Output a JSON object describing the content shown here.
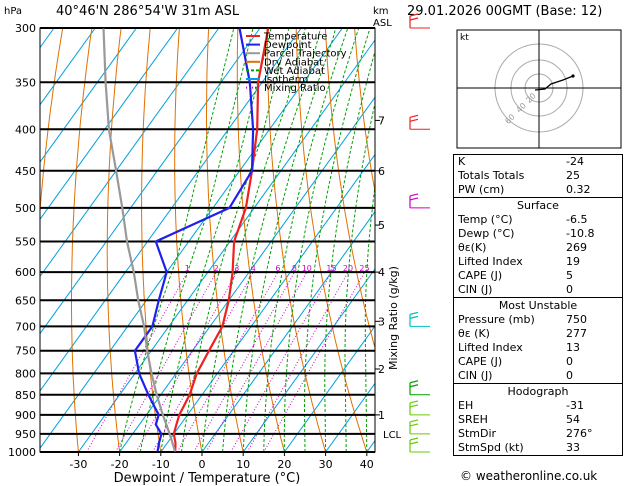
{
  "header": {
    "location": "40°46'N  286°54'W  31m  ASL",
    "datetime": "29.01.2026  00GMT  (Base: 12)",
    "left_unit": "hPa",
    "right_unit_km": "km",
    "right_unit_asl": "ASL"
  },
  "chart_data": {
    "type": "skew-t log-p",
    "title": "40°46'N 286°54'W 31m ASL",
    "xlabel": "Dewpoint / Temperature (°C)",
    "ylabel": "hPa",
    "pressure_levels": [
      300,
      350,
      400,
      450,
      500,
      550,
      600,
      650,
      700,
      750,
      800,
      850,
      900,
      950,
      1000
    ],
    "temp_ticks": [
      -30,
      -20,
      -10,
      0,
      10,
      20,
      30,
      40
    ],
    "xlim": [
      -40,
      40
    ],
    "ylim": [
      1000,
      300
    ],
    "km_labels": [
      {
        "km": "1",
        "p": 900
      },
      {
        "km": "2",
        "p": 790
      },
      {
        "km": "3",
        "p": 690
      },
      {
        "km": "4",
        "p": 600
      },
      {
        "km": "5",
        "p": 525
      },
      {
        "km": "6",
        "p": 450
      },
      {
        "km": "7",
        "p": 390
      }
    ],
    "lcl_label": "LCL",
    "lcl_pressure": 950,
    "mixing_ratio_label": "Mixing Ratio (g/kg)",
    "mixing_ratios": [
      "1",
      "2",
      "3",
      "4",
      "6",
      "8",
      "10",
      "15",
      "20",
      "25"
    ],
    "legend": [
      {
        "name": "Temperature",
        "color": "#ee2020"
      },
      {
        "name": "Dewpoint",
        "color": "#2020ee"
      },
      {
        "name": "Parcel Trajectory",
        "color": "#999999"
      },
      {
        "name": "Dry Adiabat",
        "color": "#e07000"
      },
      {
        "name": "Wet Adiabat",
        "color": "#00a000"
      },
      {
        "name": "Isotherm",
        "color": "#00a0e0"
      },
      {
        "name": "Mixing Ratio",
        "color": "#cc00cc"
      }
    ],
    "series": [
      {
        "name": "Temperature",
        "color": "#ee2020",
        "points": [
          [
            1000,
            -6.5
          ],
          [
            975,
            -8
          ],
          [
            950,
            -10
          ],
          [
            925,
            -11
          ],
          [
            900,
            -12
          ],
          [
            850,
            -13
          ],
          [
            800,
            -15
          ],
          [
            750,
            -16
          ],
          [
            700,
            -17
          ],
          [
            650,
            -20
          ],
          [
            600,
            -24
          ],
          [
            550,
            -29
          ],
          [
            500,
            -32
          ],
          [
            450,
            -37
          ],
          [
            400,
            -43
          ],
          [
            350,
            -51
          ],
          [
            300,
            -58
          ]
        ]
      },
      {
        "name": "Dewpoint",
        "color": "#2020ee",
        "points": [
          [
            1000,
            -10.8
          ],
          [
            975,
            -12
          ],
          [
            950,
            -13
          ],
          [
            925,
            -16
          ],
          [
            900,
            -17
          ],
          [
            850,
            -23
          ],
          [
            800,
            -29
          ],
          [
            750,
            -34
          ],
          [
            700,
            -34
          ],
          [
            650,
            -37
          ],
          [
            600,
            -40
          ],
          [
            550,
            -48
          ],
          [
            500,
            -36
          ],
          [
            450,
            -37
          ],
          [
            400,
            -44
          ],
          [
            350,
            -53
          ],
          [
            300,
            -65
          ]
        ]
      },
      {
        "name": "Parcel Trajectory",
        "color": "#999999",
        "points": [
          [
            1000,
            -6.5
          ],
          [
            950,
            -11
          ],
          [
            900,
            -16
          ],
          [
            850,
            -21
          ],
          [
            800,
            -26
          ],
          [
            750,
            -31
          ],
          [
            700,
            -36
          ],
          [
            650,
            -42
          ],
          [
            600,
            -48
          ],
          [
            550,
            -55
          ],
          [
            500,
            -62
          ],
          [
            450,
            -70
          ],
          [
            400,
            -79
          ],
          [
            350,
            -88
          ],
          [
            300,
            -98
          ]
        ]
      }
    ],
    "wind_barbs": [
      {
        "p": 300,
        "color": "#ee2020"
      },
      {
        "p": 400,
        "color": "#ee2020"
      },
      {
        "p": 500,
        "color": "#cc00cc"
      },
      {
        "p": 700,
        "color": "#00c0c0"
      },
      {
        "p": 850,
        "color": "#00a000"
      },
      {
        "p": 900,
        "color": "#66cc00"
      },
      {
        "p": 950,
        "color": "#66cc00"
      },
      {
        "p": 1000,
        "color": "#66cc00"
      }
    ]
  },
  "hodograph": {
    "unit_label": "kt",
    "ring_labels": [
      "20",
      "40",
      "60"
    ]
  },
  "indices": {
    "basic": [
      {
        "label": "K",
        "value": "-24"
      },
      {
        "label": "Totals Totals",
        "value": "25"
      },
      {
        "label": "PW (cm)",
        "value": "0.32"
      }
    ],
    "surface_title": "Surface",
    "surface": [
      {
        "label": "Temp (°C)",
        "value": "-6.5"
      },
      {
        "label": "Dewp (°C)",
        "value": "-10.8"
      },
      {
        "label": "θε(K)",
        "value": "269"
      },
      {
        "label": "Lifted Index",
        "value": "19"
      },
      {
        "label": "CAPE (J)",
        "value": "5"
      },
      {
        "label": "CIN (J)",
        "value": "0"
      }
    ],
    "unstable_title": "Most Unstable",
    "unstable": [
      {
        "label": "Pressure (mb)",
        "value": "750"
      },
      {
        "label": "θε (K)",
        "value": "277"
      },
      {
        "label": "Lifted Index",
        "value": "13"
      },
      {
        "label": "CAPE (J)",
        "value": "0"
      },
      {
        "label": "CIN (J)",
        "value": "0"
      }
    ],
    "hodo_title": "Hodograph",
    "hodo": [
      {
        "label": "EH",
        "value": "-31"
      },
      {
        "label": "SREH",
        "value": "54"
      },
      {
        "label": "StmDir",
        "value": "276°"
      },
      {
        "label": "StmSpd (kt)",
        "value": "33"
      }
    ]
  },
  "copyright": "© weatheronline.co.uk"
}
